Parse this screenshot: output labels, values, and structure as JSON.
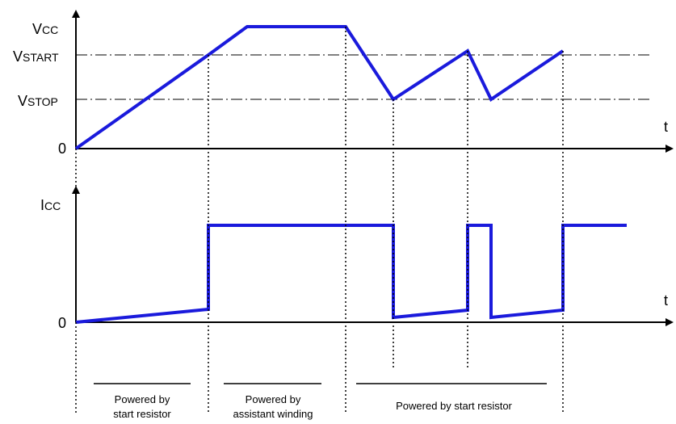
{
  "colors": {
    "waveform": "#1a1adc",
    "axis": "#000000",
    "guide": "#000000"
  },
  "vcc_axis": {
    "label_main": "V",
    "label_sub": "CC",
    "time_label": "t",
    "zero_label": "0"
  },
  "levels": {
    "vstart": {
      "main": "V",
      "sub": "START"
    },
    "vstop": {
      "main": "V",
      "sub": "STOP"
    }
  },
  "icc_axis": {
    "label_main": "I",
    "label_sub": "CC",
    "time_label": "t",
    "zero_label": "0"
  },
  "captions": {
    "phase1_line1": "Powered by",
    "phase1_line2": "start resistor",
    "phase2_line1": "Powered by",
    "phase2_line2": "assistant winding",
    "phase3": "Powered by start resistor"
  }
}
